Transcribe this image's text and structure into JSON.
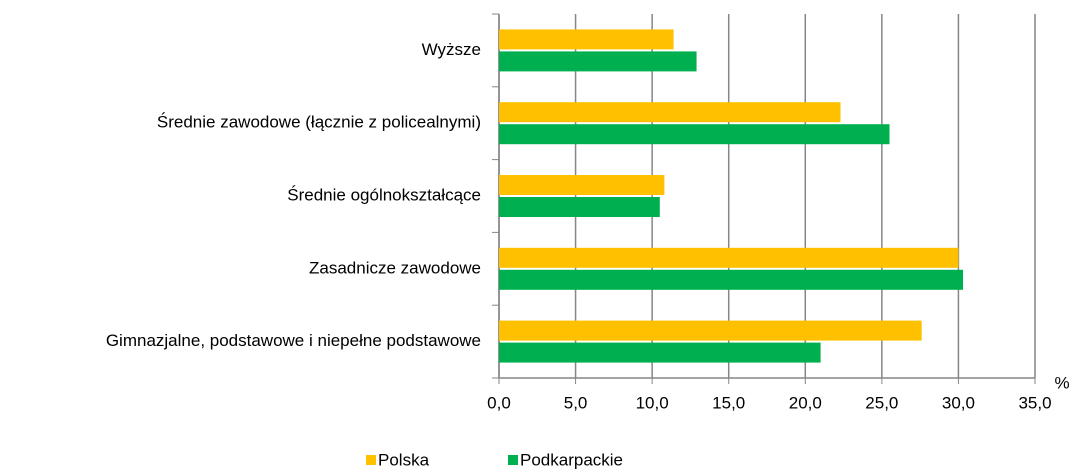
{
  "chart_data": {
    "type": "hbar",
    "categories": [
      "Wyższe",
      "Średnie zawodowe (łącznie z policealnymi)",
      "Średnie ogólnokształcące",
      "Zasadnicze zawodowe",
      "Gimnazjalne, podstawowe i niepełne podstawowe"
    ],
    "series": [
      {
        "name": "Polska",
        "color": "#ffc000",
        "values": [
          11.4,
          22.3,
          10.8,
          30.0,
          27.6
        ]
      },
      {
        "name": "Podkarpackie",
        "color": "#00b050",
        "values": [
          12.9,
          25.5,
          10.5,
          30.3,
          21.0
        ]
      }
    ],
    "xlabel": "%",
    "xlim": [
      0,
      35
    ],
    "xticks": [
      {
        "value": 0,
        "label": "0,0"
      },
      {
        "value": 5,
        "label": "5,0"
      },
      {
        "value": 10,
        "label": "10,0"
      },
      {
        "value": 15,
        "label": "15,0"
      },
      {
        "value": 20,
        "label": "20,0"
      },
      {
        "value": 25,
        "label": "25,0"
      },
      {
        "value": 30,
        "label": "30,0"
      },
      {
        "value": 35,
        "label": "35,0"
      }
    ],
    "grid": true,
    "legend": "bottom"
  }
}
